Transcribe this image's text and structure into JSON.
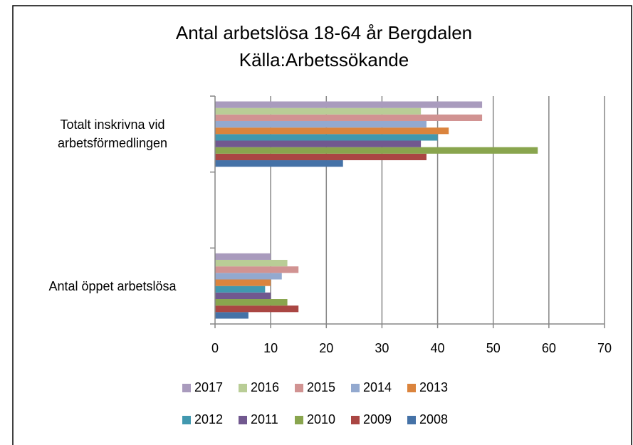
{
  "chart_data": {
    "type": "barh",
    "title": [
      "Antal arbetslösa 18-64 år Bergdalen",
      "Källa:Arbetssökande"
    ],
    "categories": [
      "Antal öppet arbetslösa",
      null,
      "Totalt inskrivna vid arbetsförmedlingen"
    ],
    "series": [
      {
        "name": "2008",
        "color": "#4572a7",
        "values": [
          6,
          null,
          23
        ]
      },
      {
        "name": "2009",
        "color": "#aa4643",
        "values": [
          15,
          null,
          38
        ]
      },
      {
        "name": "2010",
        "color": "#89a54e",
        "values": [
          13,
          null,
          58
        ]
      },
      {
        "name": "2011",
        "color": "#71588f",
        "values": [
          10,
          null,
          37
        ]
      },
      {
        "name": "2012",
        "color": "#4198af",
        "values": [
          9,
          null,
          40
        ]
      },
      {
        "name": "2013",
        "color": "#db843d",
        "values": [
          10,
          null,
          42
        ]
      },
      {
        "name": "2014",
        "color": "#93a9cf",
        "values": [
          12,
          null,
          38
        ]
      },
      {
        "name": "2015",
        "color": "#d19392",
        "values": [
          15,
          null,
          48
        ]
      },
      {
        "name": "2016",
        "color": "#b9cd96",
        "values": [
          13,
          null,
          37
        ]
      },
      {
        "name": "2017",
        "color": "#a99bbd",
        "values": [
          10,
          null,
          48
        ]
      }
    ],
    "xlim": [
      0,
      70
    ],
    "xticks": [
      0,
      10,
      20,
      30,
      40,
      50,
      60,
      70
    ],
    "grid": true
  }
}
